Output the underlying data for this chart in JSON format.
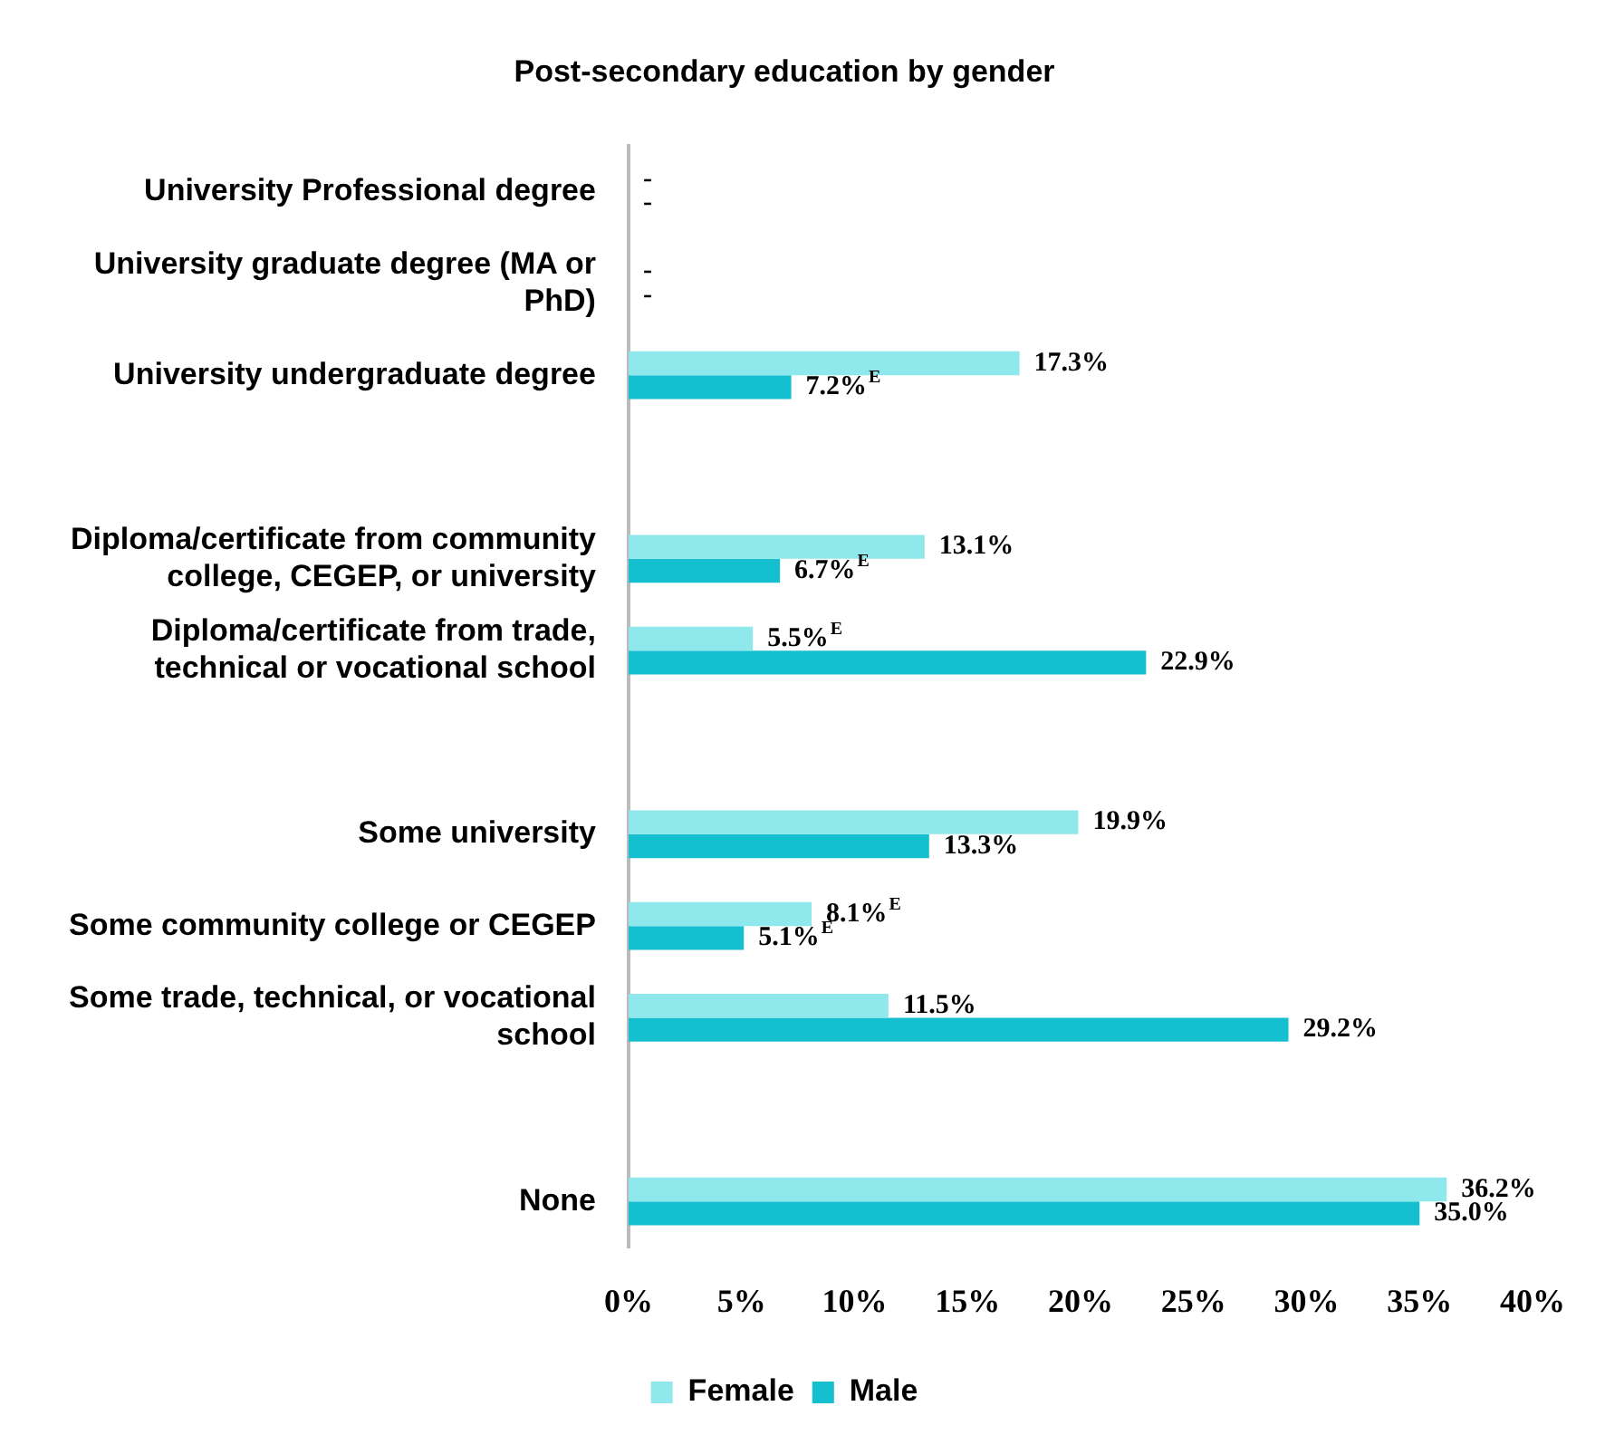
{
  "chart_data": {
    "type": "bar",
    "orientation": "horizontal",
    "title": "Post-secondary education by gender",
    "categories": [
      "University Professional degree",
      "University graduate degree (MA or PhD)",
      "University undergraduate degree",
      null,
      "Diploma/certificate from community college, CEGEP, or university",
      "Diploma/certificate from trade, technical or vocational school",
      null,
      "Some university",
      "Some community college or CEGEP",
      "Some trade, technical, or vocational school",
      null,
      "None"
    ],
    "series": [
      {
        "name": "Female",
        "color": "#8ee8ec",
        "values": [
          null,
          null,
          17.3,
          null,
          13.1,
          5.5,
          null,
          19.9,
          8.1,
          11.5,
          null,
          36.2
        ],
        "value_labels": [
          "-",
          "-",
          "17.3%",
          null,
          "13.1%",
          "5.5%$^{E}$",
          null,
          "19.9%",
          "8.1%$^{E}$",
          "11.5%",
          null,
          "36.2%"
        ]
      },
      {
        "name": "Male",
        "color": "#14c0d0",
        "values": [
          null,
          null,
          7.2,
          null,
          6.7,
          22.9,
          null,
          13.3,
          5.1,
          29.2,
          null,
          35.0
        ],
        "value_labels": [
          "-",
          "-",
          "7.2%$^{E}$",
          null,
          "6.7%$^{E}$",
          "22.9%",
          null,
          "13.3%",
          "5.1%$^{E}$",
          "29.2%",
          null,
          "35.0%"
        ]
      }
    ],
    "xlim": [
      0,
      40
    ],
    "xticks": [
      {
        "value": 0,
        "label": "0%"
      },
      {
        "value": 5,
        "label": "5%"
      },
      {
        "value": 10,
        "label": "10%"
      },
      {
        "value": 15,
        "label": "15%"
      },
      {
        "value": 20,
        "label": "20%"
      },
      {
        "value": 25,
        "label": "25%"
      },
      {
        "value": 30,
        "label": "30%"
      },
      {
        "value": 35,
        "label": "35%"
      },
      {
        "value": 40,
        "label": "40%"
      }
    ],
    "grid": false,
    "legend": "bottom"
  }
}
